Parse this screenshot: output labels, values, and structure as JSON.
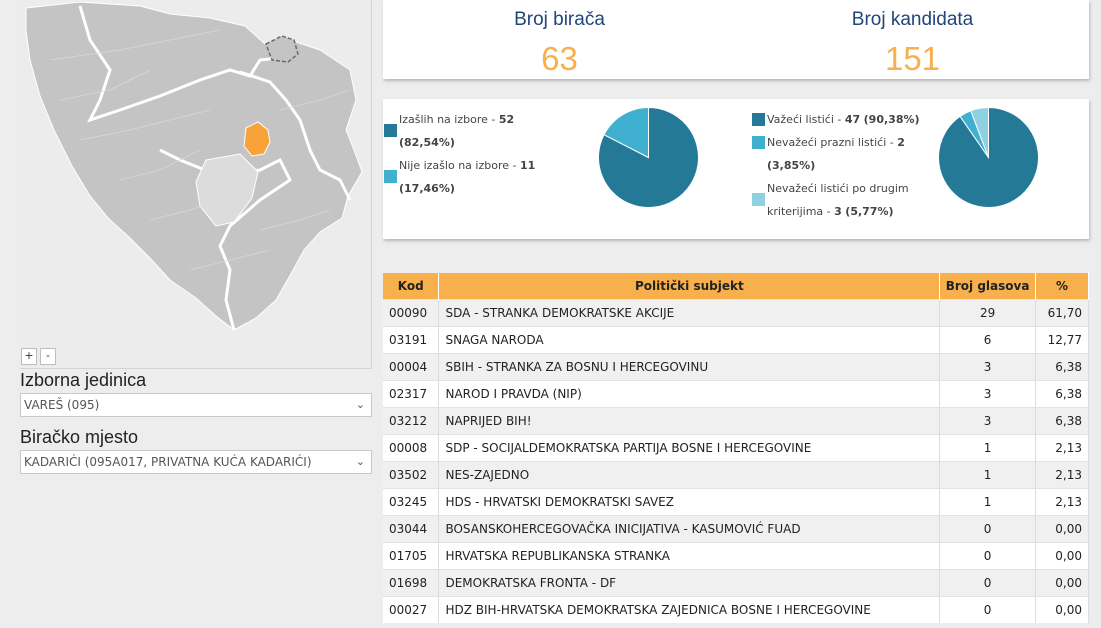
{
  "map": {
    "zoom_in_label": "+",
    "zoom_out_label": "-",
    "highlight_color": "#f7a33a",
    "region_color": "#c4c4c4"
  },
  "selectors": {
    "constituency_label": "Izborna jedinica",
    "constituency_value": "VAREŠ (095)",
    "polling_station_label": "Biračko mjesto",
    "polling_station_value": "KADARIĆI (095A017, PRIVATNA KUĆA KADARIĆI)"
  },
  "stats": {
    "voters_label": "Broj birača",
    "voters_value": "63",
    "candidates_label": "Broj kandidata",
    "candidates_value": "151"
  },
  "turnout": {
    "items": [
      {
        "label": "Izašlih na izbore - ",
        "count": "52",
        "pct": "(82,54%)",
        "value": 52,
        "color": "#247a96"
      },
      {
        "label": "Nije izašlo na izbore - ",
        "count": "11",
        "pct": "(17,46%)",
        "value": 11,
        "color": "#3fb0cf"
      }
    ]
  },
  "ballots": {
    "items": [
      {
        "label": "Važeći listići - ",
        "count": "47",
        "pct": "(90,38%)",
        "value": 47,
        "color": "#247a96"
      },
      {
        "label": "Nevažeći prazni listići - ",
        "count": "2",
        "pct": "(3,85%)",
        "value": 2,
        "color": "#3fb0cf"
      },
      {
        "label": "Nevažeći listići po drugim kriterijima - ",
        "count": "3",
        "pct": "(5,77%)",
        "value": 3,
        "color": "#90d0e3"
      }
    ]
  },
  "table": {
    "headers": [
      "Kod",
      "Politički subjekt",
      "Broj glasova",
      "%"
    ],
    "rows": [
      {
        "code": "00090",
        "name": "SDA - STRANKA DEMOKRATSKE AKCIJE",
        "votes": "29",
        "pct": "61,70"
      },
      {
        "code": "03191",
        "name": "SNAGA NARODA",
        "votes": "6",
        "pct": "12,77"
      },
      {
        "code": "00004",
        "name": "SBIH - STRANKA ZA BOSNU I HERCEGOVINU",
        "votes": "3",
        "pct": "6,38"
      },
      {
        "code": "02317",
        "name": "NAROD I PRAVDA (NIP)",
        "votes": "3",
        "pct": "6,38"
      },
      {
        "code": "03212",
        "name": "NAPRIJED BIH!",
        "votes": "3",
        "pct": "6,38"
      },
      {
        "code": "00008",
        "name": "SDP - SOCIJALDEMOKRATSKA PARTIJA BOSNE I HERCEGOVINE",
        "votes": "1",
        "pct": "2,13"
      },
      {
        "code": "03502",
        "name": "NES-ZAJEDNO",
        "votes": "1",
        "pct": "2,13"
      },
      {
        "code": "03245",
        "name": "HDS - HRVATSKI DEMOKRATSKI SAVEZ",
        "votes": "1",
        "pct": "2,13"
      },
      {
        "code": "03044",
        "name": "BOSANSKOHERCEGOVAČKA INICIJATIVA - KASUMOVIĆ FUAD",
        "votes": "0",
        "pct": "0,00"
      },
      {
        "code": "01705",
        "name": "HRVATSKA REPUBLIKANSKA STRANKA",
        "votes": "0",
        "pct": "0,00"
      },
      {
        "code": "01698",
        "name": "DEMOKRATSKA FRONTA - DF",
        "votes": "0",
        "pct": "0,00"
      },
      {
        "code": "00027",
        "name": "HDZ BIH-HRVATSKA DEMOKRATSKA ZAJEDNICA BOSNE I HERCEGOVINE",
        "votes": "0",
        "pct": "0,00"
      }
    ]
  }
}
